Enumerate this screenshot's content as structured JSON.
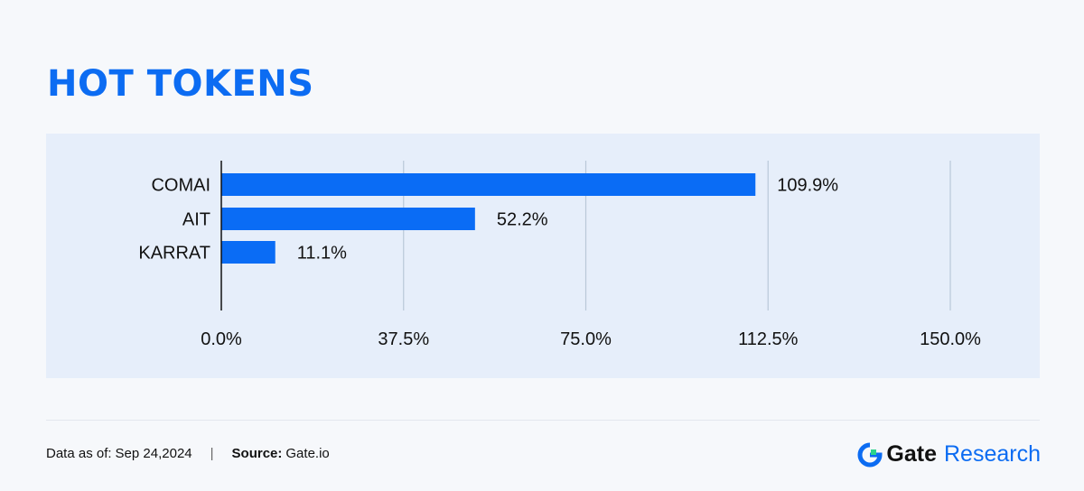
{
  "title": "HOT TOKENS",
  "footer": {
    "date_label": "Data as of:",
    "date_value": "Sep 24,2024",
    "source_label": "Source:",
    "source_value": "Gate.io",
    "separator": "|"
  },
  "brand": {
    "name": "Gate",
    "suffix": "Research",
    "logo_icon": "gate-logo-icon"
  },
  "colors": {
    "title": "#0c6cf2",
    "bar": "#0a6cf5",
    "panel": "#e6eefa",
    "grid": "#b9c8d8"
  },
  "chart_data": {
    "type": "bar",
    "orientation": "horizontal",
    "categories": [
      "COMAI",
      "AIT",
      "KARRAT"
    ],
    "values": [
      109.9,
      52.2,
      11.1
    ],
    "value_labels": [
      "109.9%",
      "52.2%",
      "11.1%"
    ],
    "xlim": [
      0,
      150
    ],
    "xticks": [
      0,
      37.5,
      75,
      112.5,
      150
    ],
    "xtick_labels": [
      "0.0%",
      "37.5%",
      "75.0%",
      "112.5%",
      "150.0%"
    ],
    "grid": true
  }
}
